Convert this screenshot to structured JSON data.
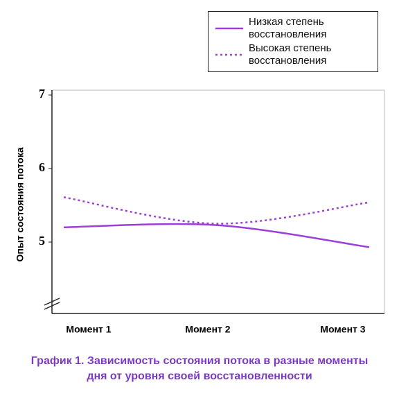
{
  "chart_data": {
    "type": "line",
    "y_label": "Опыт состояния потока",
    "caption": "График 1. Зависимость состояния потока в разные моменты дня от уровня своей восстановленности",
    "categories": [
      "Момент 1",
      "Момент 2",
      "Момент 3"
    ],
    "series": [
      {
        "name": "Низкая степень восстановления",
        "color": "#9b3fd6",
        "dash": false,
        "values": [
          5.2,
          5.23,
          4.93
        ]
      },
      {
        "name": "Высокая степень восстановления",
        "color": "#9b3fd6",
        "dash": true,
        "values": [
          5.61,
          5.25,
          5.54
        ]
      }
    ],
    "ylim": [
      4,
      7
    ],
    "yticks": [
      5,
      6,
      7
    ]
  }
}
